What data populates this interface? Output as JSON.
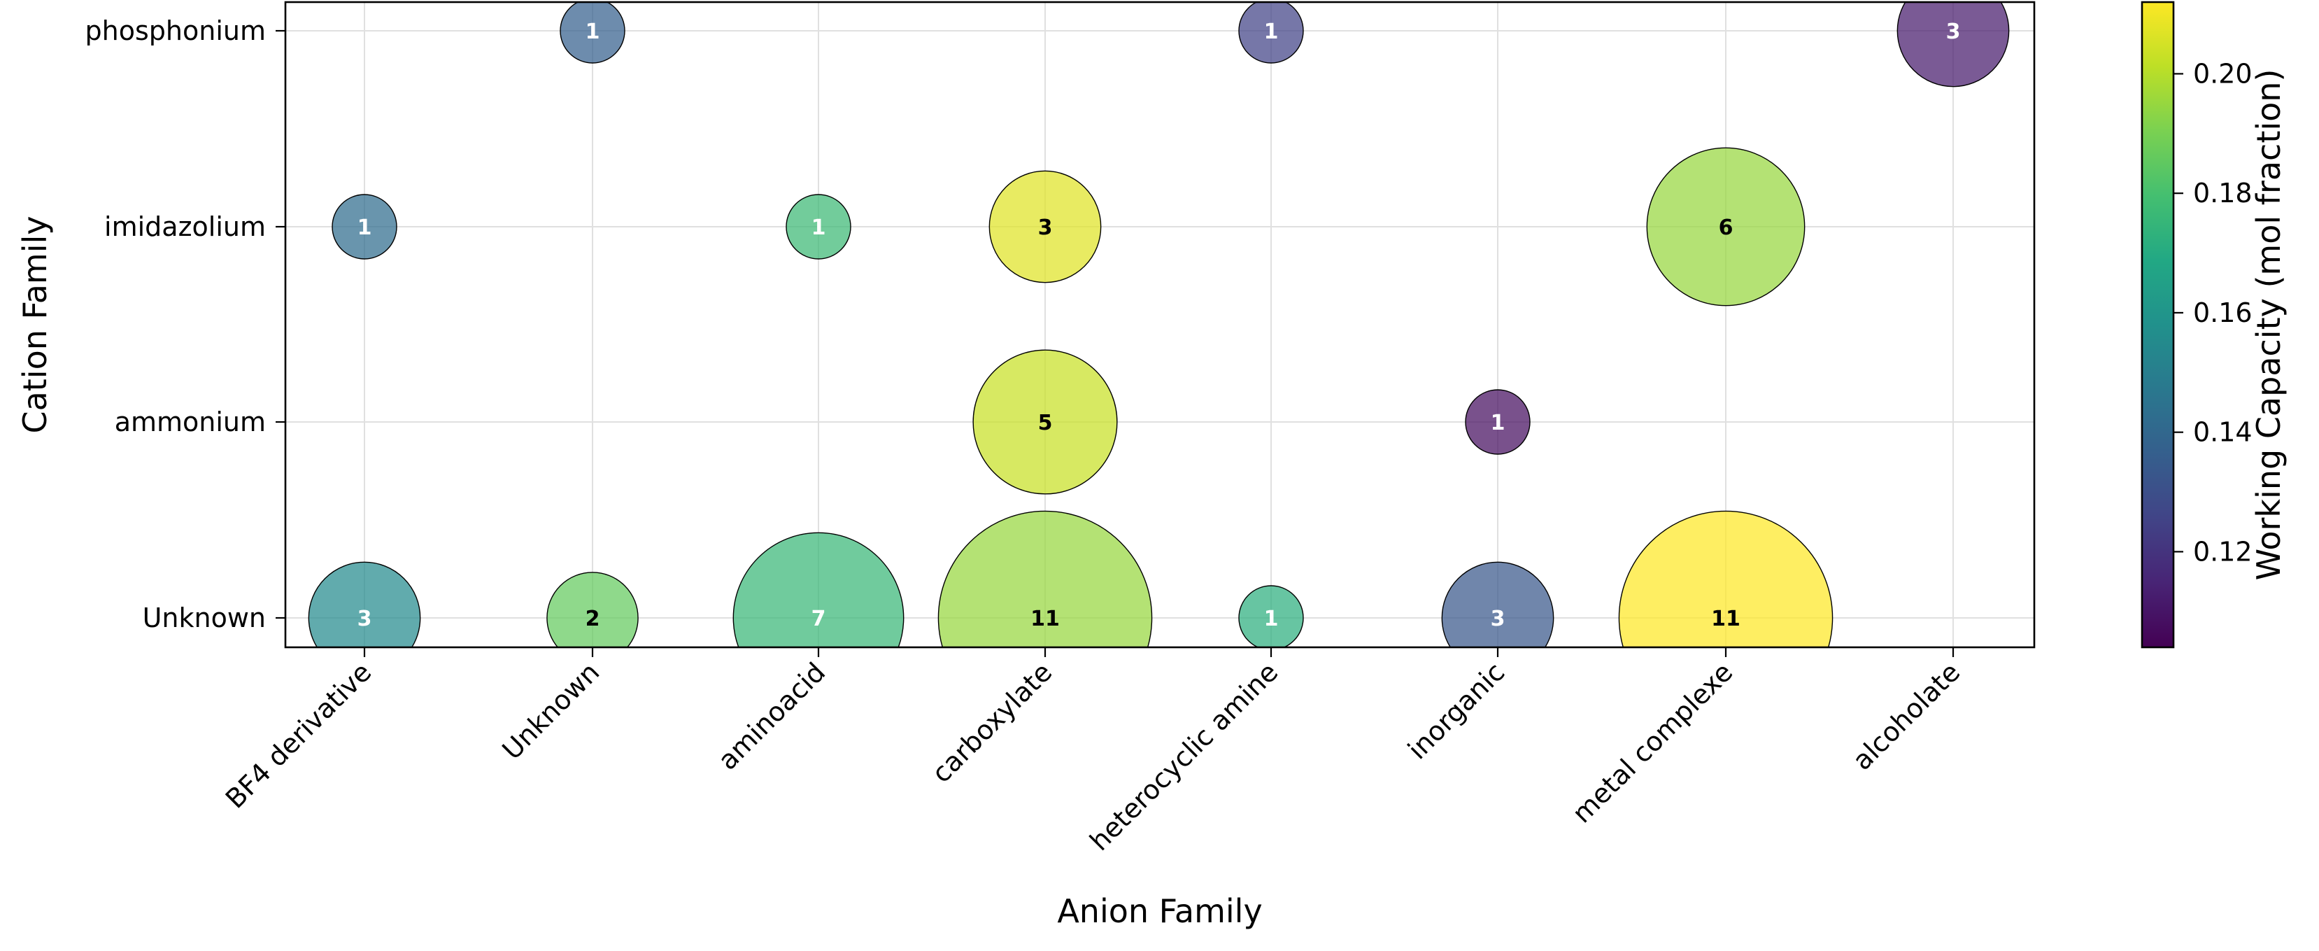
{
  "chart_data": {
    "type": "bubble",
    "xlabel": "Anion Family",
    "ylabel": "Cation Family",
    "x_categories": [
      "BF4 derivative",
      "Unknown",
      "aminoacid",
      "carboxylate",
      "heterocyclic amine",
      "inorganic",
      "metal complexe",
      "alcoholate"
    ],
    "y_categories": [
      "Unknown",
      "ammonium",
      "imidazolium",
      "phosphonium"
    ],
    "grid": true,
    "colorbar": {
      "label": "Working Capacity (mol fraction)",
      "colormap": "viridis",
      "range": [
        0.104,
        0.212
      ],
      "ticks": [
        0.12,
        0.14,
        0.16,
        0.18,
        0.2
      ],
      "tick_labels": [
        "0.12",
        "0.14",
        "0.16",
        "0.18",
        "0.20"
      ]
    },
    "points": [
      {
        "anion": "BF4 derivative",
        "cation": "phosphonium",
        "count": 0
      },
      {
        "anion": "Unknown",
        "cation": "phosphonium",
        "count": 1,
        "label": "1",
        "value": 0.137
      },
      {
        "anion": "heterocyclic amine",
        "cation": "phosphonium",
        "count": 1,
        "label": "1",
        "value": 0.125
      },
      {
        "anion": "alcoholate",
        "cation": "phosphonium",
        "count": 3,
        "label": "3",
        "value": 0.112
      },
      {
        "anion": "BF4 derivative",
        "cation": "imidazolium",
        "count": 1,
        "label": "1",
        "value": 0.142
      },
      {
        "anion": "aminoacid",
        "cation": "imidazolium",
        "count": 1,
        "label": "1",
        "value": 0.177
      },
      {
        "anion": "carboxylate",
        "cation": "imidazolium",
        "count": 3,
        "label": "3",
        "value": 0.207
      },
      {
        "anion": "metal complexe",
        "cation": "imidazolium",
        "count": 6,
        "label": "6",
        "value": 0.195
      },
      {
        "anion": "carboxylate",
        "cation": "ammonium",
        "count": 5,
        "label": "5",
        "value": 0.203
      },
      {
        "anion": "inorganic",
        "cation": "ammonium",
        "count": 1,
        "label": "1",
        "value": 0.108
      },
      {
        "anion": "BF4 derivative",
        "cation": "Unknown",
        "count": 3,
        "label": "3",
        "value": 0.155
      },
      {
        "anion": "Unknown",
        "cation": "Unknown",
        "count": 2,
        "label": "2",
        "value": 0.186
      },
      {
        "anion": "aminoacid",
        "cation": "Unknown",
        "count": 7,
        "label": "7",
        "value": 0.176
      },
      {
        "anion": "carboxylate",
        "cation": "Unknown",
        "count": 11,
        "label": "11",
        "value": 0.195
      },
      {
        "anion": "heterocyclic amine",
        "cation": "Unknown",
        "count": 1,
        "label": "1",
        "value": 0.172
      },
      {
        "anion": "inorganic",
        "cation": "Unknown",
        "count": 3,
        "label": "3",
        "value": 0.133
      },
      {
        "anion": "metal complexe",
        "cation": "Unknown",
        "count": 11,
        "label": "11",
        "value": 0.212
      }
    ]
  }
}
